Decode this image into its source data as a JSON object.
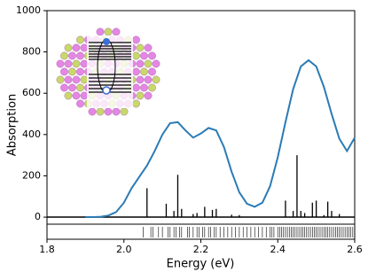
{
  "chart_data": {
    "type": "line",
    "xlabel": "Energy (eV)",
    "ylabel": "Absorption",
    "color": "#2b7bb4",
    "stick_color": "#000000",
    "xlim": [
      1.8,
      2.6
    ],
    "ylim": [
      -107,
      1000
    ],
    "xticks": [
      1.8,
      {
        "value": 2.0,
        "label": "2.0"
      },
      2.2,
      2.4,
      2.6
    ],
    "yticks": [
      0,
      200,
      400,
      600,
      800,
      1000
    ],
    "x": [
      1.9,
      1.92,
      1.94,
      1.96,
      1.98,
      2.0,
      2.02,
      2.04,
      2.06,
      2.08,
      2.1,
      2.12,
      2.14,
      2.16,
      2.18,
      2.2,
      2.22,
      2.24,
      2.26,
      2.28,
      2.3,
      2.32,
      2.34,
      2.36,
      2.38,
      2.4,
      2.42,
      2.44,
      2.46,
      2.48,
      2.5,
      2.52,
      2.54,
      2.56,
      2.58,
      2.6
    ],
    "values": [
      0,
      0,
      2,
      8,
      25,
      70,
      140,
      195,
      250,
      320,
      400,
      455,
      460,
      420,
      385,
      405,
      432,
      420,
      340,
      220,
      120,
      65,
      50,
      70,
      150,
      290,
      460,
      620,
      730,
      760,
      730,
      630,
      500,
      380,
      320,
      385
    ],
    "sticks": {
      "x": [
        2.06,
        2.11,
        2.13,
        2.14,
        2.15,
        2.18,
        2.19,
        2.21,
        2.23,
        2.24,
        2.28,
        2.3,
        2.42,
        2.44,
        2.45,
        2.46,
        2.47,
        2.49,
        2.5,
        2.52,
        2.53,
        2.54,
        2.56
      ],
      "values": [
        140,
        65,
        30,
        205,
        40,
        15,
        20,
        50,
        35,
        40,
        12,
        10,
        80,
        30,
        300,
        30,
        20,
        70,
        80,
        10,
        75,
        30,
        15
      ]
    },
    "rug": [
      2.05,
      2.07,
      2.075,
      2.09,
      2.1,
      2.115,
      2.12,
      2.13,
      2.135,
      2.145,
      2.15,
      2.165,
      2.17,
      2.18,
      2.19,
      2.195,
      2.205,
      2.21,
      2.22,
      2.225,
      2.235,
      2.24,
      2.25,
      2.26,
      2.27,
      2.28,
      2.29,
      2.3,
      2.31,
      2.32,
      2.33,
      2.34,
      2.35,
      2.36,
      2.37,
      2.38,
      2.385,
      2.39,
      2.4,
      2.405,
      2.41,
      2.415,
      2.42,
      2.425,
      2.43,
      2.435,
      2.44,
      2.445,
      2.45,
      2.455,
      2.46,
      2.465,
      2.47,
      2.475,
      2.48,
      2.485,
      2.49,
      2.495,
      2.5,
      2.505,
      2.51,
      2.515,
      2.52,
      2.525,
      2.53,
      2.535,
      2.54,
      2.545,
      2.55,
      2.555,
      2.56,
      2.565,
      2.57,
      2.575,
      2.58,
      2.585,
      2.59,
      2.595
    ]
  }
}
